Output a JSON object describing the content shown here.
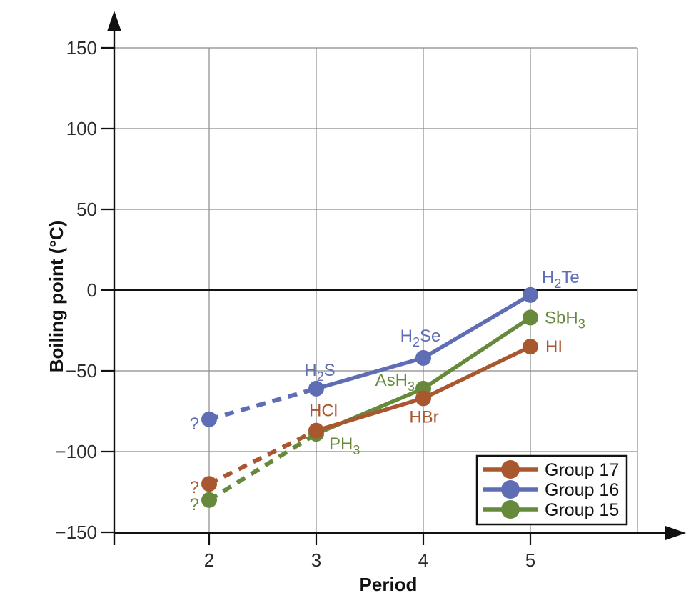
{
  "chart_data": {
    "type": "line",
    "title": "",
    "xlabel": "Period",
    "ylabel": "Boiling point (°C)",
    "x": [
      2,
      3,
      4,
      5
    ],
    "x_tick_labels": [
      "2",
      "3",
      "4",
      "5"
    ],
    "y_ticks": [
      150,
      100,
      50,
      0,
      -50,
      -100,
      -150
    ],
    "y_tick_labels": [
      "150",
      "100",
      "50",
      "0",
      "−50",
      "−100",
      "−150"
    ],
    "xlim": [
      1.1,
      6
    ],
    "ylim": [
      -150,
      165
    ],
    "grid": true,
    "zero_line": true,
    "subscript_marker": "_",
    "series": [
      {
        "name": "Group 17",
        "color": "#A9572E",
        "values": [
          -120,
          -87,
          -67,
          -35
        ],
        "point_labels": [
          "?",
          "HCl",
          "HBr",
          "HI"
        ],
        "predicted": [
          true,
          false,
          false,
          false
        ],
        "first_segment_dashed": true
      },
      {
        "name": "Group 16",
        "color": "#5F6DB4",
        "values": [
          -80,
          -61,
          -42,
          -3
        ],
        "point_labels": [
          "?",
          "H_2S",
          "H_2Se",
          "H_2Te"
        ],
        "predicted": [
          true,
          false,
          false,
          false
        ],
        "first_segment_dashed": true
      },
      {
        "name": "Group 15",
        "color": "#66893B",
        "values": [
          -130,
          -89,
          -61,
          -17
        ],
        "point_labels": [
          "?",
          "PH_3",
          "AsH_3",
          "SbH_3"
        ],
        "predicted": [
          true,
          false,
          false,
          false
        ],
        "first_segment_dashed": true
      }
    ],
    "legend": {
      "position": "lower-right",
      "entries": [
        "Group 17",
        "Group 16",
        "Group 15"
      ]
    },
    "colors": {
      "grid": "#8a8a8a",
      "axis": "#111111",
      "zero_line": "#111111",
      "tick_text": "#2b2b2b",
      "background": "#ffffff"
    }
  }
}
